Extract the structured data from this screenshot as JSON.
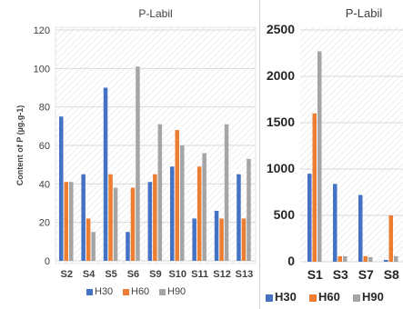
{
  "chart_data": [
    {
      "type": "bar",
      "title": "P-Labil",
      "ylabel": "Content of P (µg.g-1)",
      "xlabel": "",
      "ylim": [
        0,
        120
      ],
      "yticks": [
        0,
        20,
        40,
        60,
        80,
        100,
        120
      ],
      "categories": [
        "S2",
        "S4",
        "S5",
        "S6",
        "S9",
        "S10",
        "S11",
        "S12",
        "S13"
      ],
      "series": [
        {
          "name": "H30",
          "color": "#4472C4",
          "values": [
            75,
            45,
            90,
            15,
            41,
            49,
            22,
            26,
            45
          ]
        },
        {
          "name": "H60",
          "color": "#ED7D31",
          "values": [
            41,
            22,
            45,
            38,
            45,
            68,
            49,
            22,
            22
          ]
        },
        {
          "name": "H90",
          "color": "#A5A5A5",
          "values": [
            41,
            15,
            38,
            101,
            71,
            60,
            56,
            71,
            53
          ]
        }
      ],
      "grid": true,
      "legend_position": "bottom"
    },
    {
      "type": "bar",
      "title": "P-Labil",
      "ylabel": "",
      "xlabel": "",
      "ylim": [
        0,
        2500
      ],
      "yticks": [
        0,
        500,
        1000,
        1500,
        2000,
        2500
      ],
      "categories": [
        "S1",
        "S3",
        "S7",
        "S8"
      ],
      "series": [
        {
          "name": "H30",
          "color": "#4472C4",
          "values": [
            950,
            840,
            720,
            20
          ]
        },
        {
          "name": "H60",
          "color": "#ED7D31",
          "values": [
            1600,
            60,
            60,
            500
          ]
        },
        {
          "name": "H90",
          "color": "#A5A5A5",
          "values": [
            2270,
            60,
            50,
            60
          ]
        }
      ],
      "legend_labels": [
        "H30",
        "H60",
        "H90"
      ],
      "grid": true,
      "legend_position": "bottom"
    }
  ]
}
